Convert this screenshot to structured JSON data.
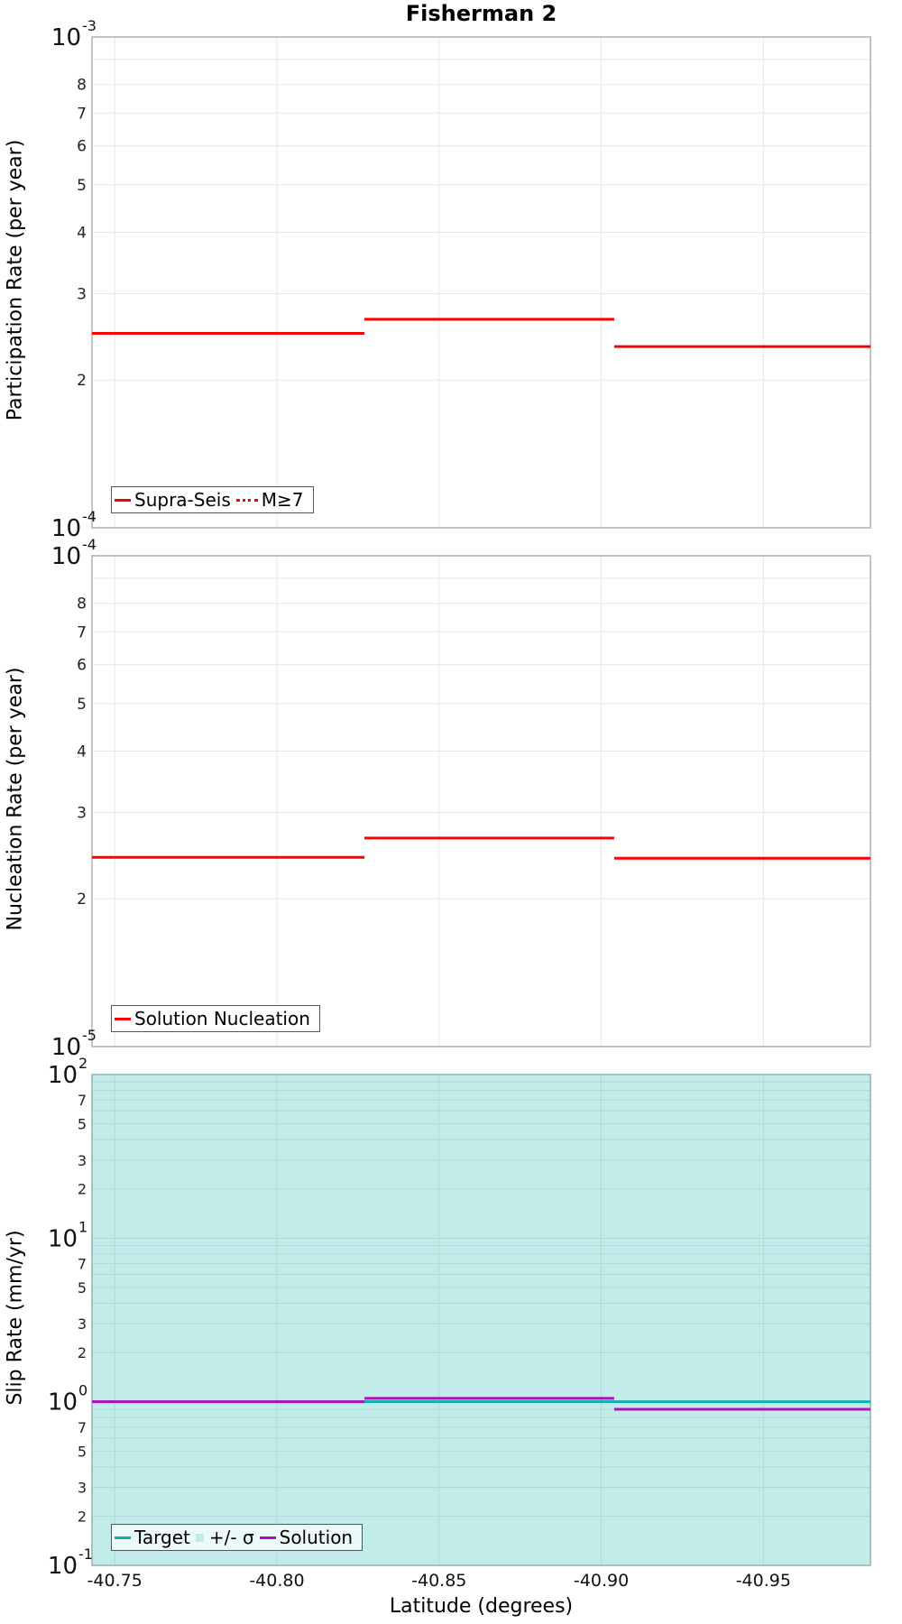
{
  "title": "Fisherman 2",
  "xlabel": "Latitude (degrees)",
  "x_ticks": [
    "-40.75",
    "-40.80",
    "-40.85",
    "-40.90",
    "-40.95"
  ],
  "panels": [
    {
      "ylabel": "Participation Rate (per year)",
      "legend": [
        {
          "label": "Supra-Seis",
          "style": "solid",
          "color": "#ff0000"
        },
        {
          "label": "M≥7",
          "style": "dotted",
          "color": "#ff0000"
        }
      ]
    },
    {
      "ylabel": "Nucleation Rate (per year)",
      "legend": [
        {
          "label": "Solution Nucleation",
          "style": "solid",
          "color": "#ff0000"
        }
      ]
    },
    {
      "ylabel": "Slip Rate (mm/yr)",
      "legend": [
        {
          "label": "Target",
          "style": "solid",
          "color": "#10b0b0"
        },
        {
          "label": "+/- σ",
          "style": "box",
          "color": "#c2ecea"
        },
        {
          "label": "Solution",
          "style": "solid",
          "color": "#b010b8"
        }
      ]
    }
  ],
  "colors": {
    "red": "#ff0000",
    "target": "#10b0b0",
    "solution": "#b010b8",
    "sigma_fill": "#c2ecea",
    "grid": "#e8e8e8",
    "frame": "#b0b0b0"
  },
  "chart_data": [
    {
      "type": "line",
      "title": "Fisherman 2",
      "xlabel": "Latitude (degrees)",
      "ylabel": "Participation Rate (per year)",
      "yscale": "log",
      "ylim": [
        0.0001,
        0.001
      ],
      "xlim": [
        -40.743,
        -40.983
      ],
      "x_tick_labels": [
        "-40.75",
        "-40.80",
        "-40.85",
        "-40.90",
        "-40.95"
      ],
      "y_tick_labels": [
        "10^-4",
        "2",
        "3",
        "4",
        "5",
        "6",
        "7",
        "8",
        "10^-3"
      ],
      "grid": true,
      "legend_position": "lower left",
      "series": [
        {
          "name": "Supra-Seis",
          "style": "step",
          "x": [
            -40.743,
            -40.827,
            -40.827,
            -40.904,
            -40.904,
            -40.983
          ],
          "values": [
            0.000249,
            0.000249,
            0.000266,
            0.000266,
            0.000234,
            0.000234
          ]
        },
        {
          "name": "M≥7",
          "style": "dotted step",
          "x": [
            -40.743,
            -40.827,
            -40.827,
            -40.904,
            -40.904,
            -40.983
          ],
          "values": [
            0.000249,
            0.000249,
            0.000266,
            0.000266,
            0.000234,
            0.000234
          ]
        }
      ]
    },
    {
      "type": "line",
      "xlabel": "Latitude (degrees)",
      "ylabel": "Nucleation Rate (per year)",
      "yscale": "log",
      "ylim": [
        1e-05,
        0.0001
      ],
      "xlim": [
        -40.743,
        -40.983
      ],
      "y_tick_labels": [
        "10^-5",
        "2",
        "3",
        "4",
        "5",
        "6",
        "7",
        "8",
        "10^-4"
      ],
      "grid": true,
      "legend_position": "lower left",
      "series": [
        {
          "name": "Solution Nucleation",
          "style": "step",
          "x": [
            -40.743,
            -40.827,
            -40.827,
            -40.904,
            -40.904,
            -40.983
          ],
          "values": [
            2.43e-05,
            2.43e-05,
            2.66e-05,
            2.66e-05,
            2.42e-05,
            2.42e-05
          ]
        }
      ]
    },
    {
      "type": "line",
      "xlabel": "Latitude (degrees)",
      "ylabel": "Slip Rate (mm/yr)",
      "yscale": "log",
      "ylim": [
        0.1,
        100
      ],
      "xlim": [
        -40.743,
        -40.983
      ],
      "y_tick_labels": [
        "10^-1",
        "2",
        "3",
        "5",
        "7",
        "10^0",
        "2",
        "3",
        "5",
        "7",
        "10^1",
        "2",
        "3",
        "5",
        "7",
        "10^2"
      ],
      "grid": true,
      "legend_position": "lower left",
      "series": [
        {
          "name": "Target",
          "style": "step",
          "x": [
            -40.743,
            -40.983
          ],
          "values": [
            1.0,
            1.0
          ]
        },
        {
          "name": "+/- σ",
          "style": "band",
          "x": [
            -40.743,
            -40.983
          ],
          "lower": [
            0.1,
            0.1
          ],
          "upper": [
            100,
            100
          ]
        },
        {
          "name": "Solution",
          "style": "step",
          "x": [
            -40.743,
            -40.827,
            -40.827,
            -40.904,
            -40.904,
            -40.983
          ],
          "values": [
            1.0,
            1.0,
            1.05,
            1.05,
            0.9,
            0.9
          ]
        }
      ]
    }
  ]
}
